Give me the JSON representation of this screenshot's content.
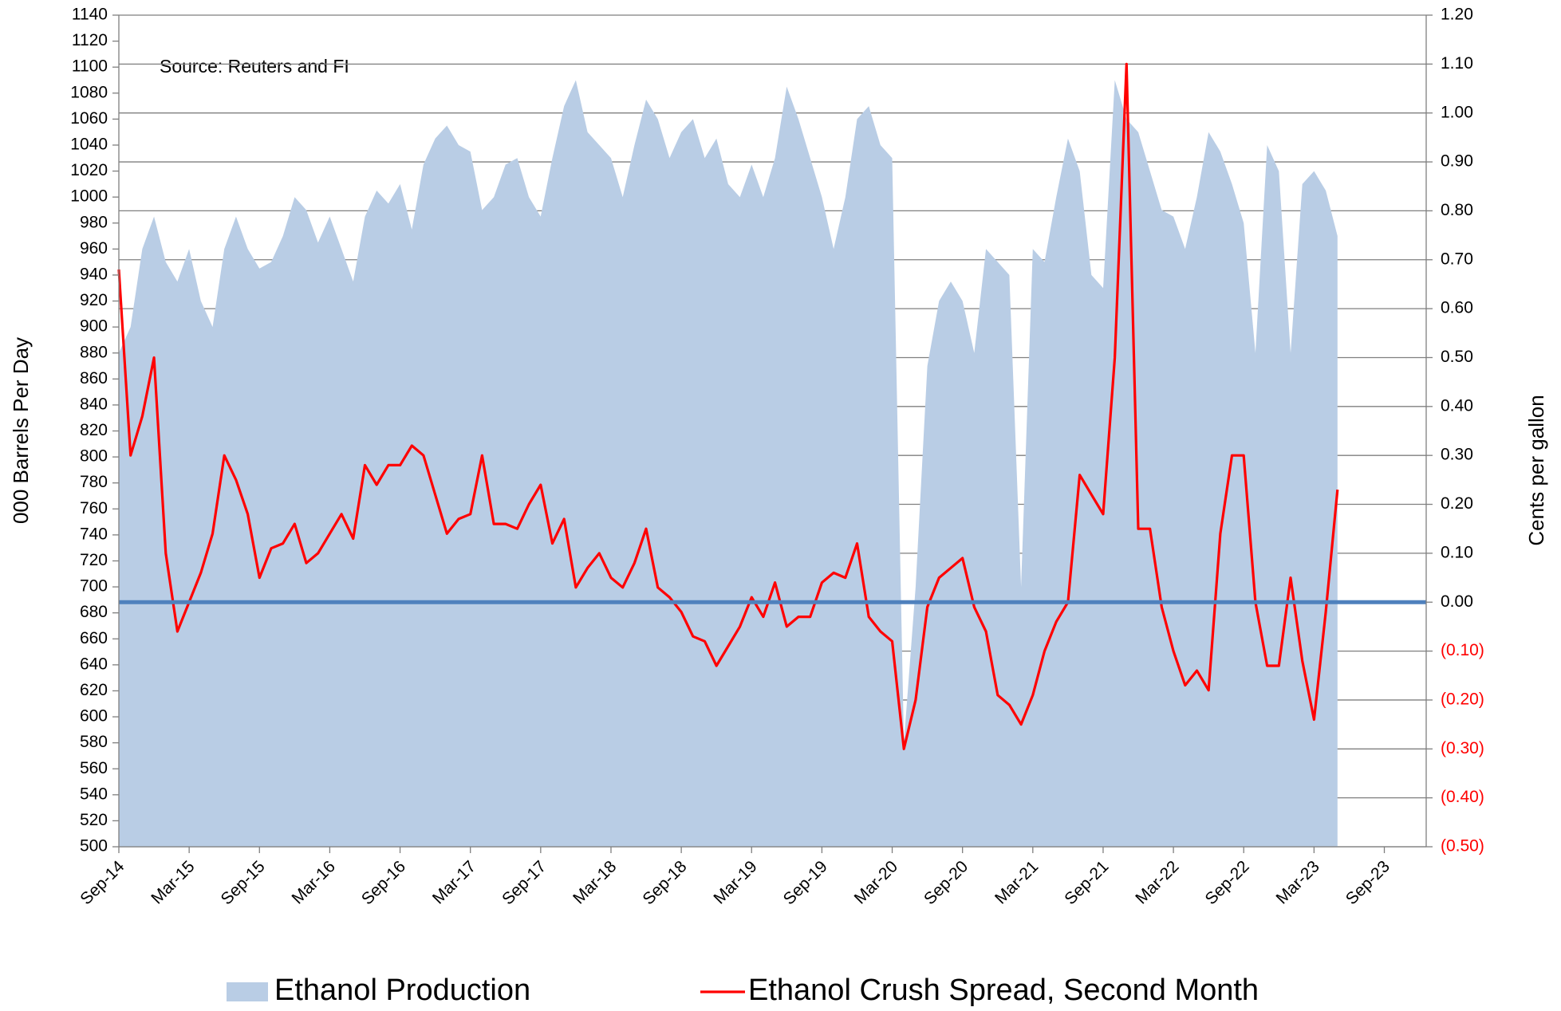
{
  "chart_data": {
    "type": "area-line",
    "annotation": "Source: Reuters and FI",
    "ylabel": "000 Barrels Per Day",
    "y2label": "Cents per gallon",
    "categories": [
      "Sep-14",
      null,
      null,
      null,
      null,
      null,
      "Mar-15",
      null,
      null,
      null,
      null,
      null,
      "Sep-15",
      null,
      null,
      null,
      null,
      null,
      "Mar-16",
      null,
      null,
      null,
      null,
      null,
      "Sep-16",
      null,
      null,
      null,
      null,
      null,
      "Mar-17",
      null,
      null,
      null,
      null,
      null,
      "Sep-17",
      null,
      null,
      null,
      null,
      null,
      "Mar-18",
      null,
      null,
      null,
      null,
      null,
      "Sep-18",
      null,
      null,
      null,
      null,
      null,
      "Mar-19",
      null,
      null,
      null,
      null,
      null,
      "Sep-19",
      null,
      null,
      null,
      null,
      null,
      "Mar-20",
      null,
      null,
      null,
      null,
      null,
      "Sep-20",
      null,
      null,
      null,
      null,
      null,
      "Mar-21",
      null,
      null,
      null,
      null,
      null,
      "Sep-21",
      null,
      null,
      null,
      null,
      null,
      "Mar-22",
      null,
      null,
      null,
      null,
      null,
      "Sep-22",
      null,
      null,
      null,
      null,
      null,
      "Mar-23",
      null,
      null,
      null,
      null,
      null,
      "Sep-23"
    ],
    "series": [
      {
        "name": "Ethanol Production",
        "kind": "area",
        "axis": "y",
        "color": "#b9cde5",
        "values": [
          880,
          900,
          960,
          985,
          950,
          935,
          960,
          920,
          900,
          960,
          985,
          960,
          945,
          950,
          970,
          1000,
          990,
          965,
          985,
          960,
          935,
          985,
          1005,
          995,
          1010,
          975,
          1025,
          1045,
          1055,
          1040,
          1035,
          990,
          1000,
          1025,
          1030,
          1000,
          985,
          1030,
          1070,
          1090,
          1050,
          1040,
          1030,
          1000,
          1040,
          1075,
          1060,
          1030,
          1050,
          1060,
          1030,
          1045,
          1010,
          1000,
          1025,
          1000,
          1030,
          1085,
          1060,
          1030,
          1000,
          960,
          1000,
          1060,
          1070,
          1040,
          1030,
          580,
          700,
          870,
          920,
          935,
          920,
          880,
          960,
          950,
          940,
          700,
          960,
          950,
          1000,
          1045,
          1020,
          940,
          930,
          1090,
          1060,
          1050,
          1020,
          990,
          985,
          960,
          1000,
          1050,
          1035,
          1010,
          980,
          880,
          1040,
          1020,
          880,
          1010,
          1020,
          1005,
          970,
          null,
          null,
          null,
          null
        ]
      },
      {
        "name": "Ethanol Crush Spread, Second Month",
        "kind": "line",
        "axis": "y2",
        "color": "#ff0000",
        "values": [
          0.68,
          0.3,
          0.38,
          0.5,
          0.1,
          -0.06,
          0.0,
          0.06,
          0.14,
          0.3,
          0.25,
          0.18,
          0.05,
          0.11,
          0.12,
          0.16,
          0.08,
          0.1,
          0.14,
          0.18,
          0.13,
          0.28,
          0.24,
          0.28,
          0.28,
          0.32,
          0.3,
          0.22,
          0.14,
          0.17,
          0.18,
          0.3,
          0.16,
          0.16,
          0.15,
          0.2,
          0.24,
          0.12,
          0.17,
          0.03,
          0.07,
          0.1,
          0.05,
          0.03,
          0.08,
          0.15,
          0.03,
          0.01,
          -0.02,
          -0.07,
          -0.08,
          -0.13,
          -0.09,
          -0.05,
          0.01,
          -0.03,
          0.04,
          -0.05,
          -0.03,
          -0.03,
          0.04,
          0.06,
          0.05,
          0.12,
          -0.03,
          -0.06,
          -0.08,
          -0.3,
          -0.2,
          -0.01,
          0.05,
          0.07,
          0.09,
          -0.01,
          -0.06,
          -0.19,
          -0.21,
          -0.25,
          -0.19,
          -0.1,
          -0.04,
          0.0,
          0.26,
          0.22,
          0.18,
          0.5,
          1.1,
          0.15,
          0.15,
          -0.01,
          -0.1,
          -0.17,
          -0.14,
          -0.18,
          0.14,
          0.3,
          0.3,
          0.0,
          -0.13,
          -0.13,
          0.05,
          -0.12,
          -0.24,
          -0.02,
          0.23,
          null,
          null,
          null,
          null
        ]
      }
    ],
    "ylim": [
      500,
      1140
    ],
    "yticks": [
      500,
      520,
      540,
      560,
      580,
      600,
      620,
      640,
      660,
      680,
      700,
      720,
      740,
      760,
      780,
      800,
      820,
      840,
      860,
      880,
      900,
      920,
      940,
      960,
      980,
      1000,
      1020,
      1040,
      1060,
      1080,
      1100,
      1120,
      1140
    ],
    "y2lim": [
      -0.5,
      1.2
    ],
    "y2ticks": [
      {
        "value": -0.5,
        "label": "(0.50)"
      },
      {
        "value": -0.4,
        "label": "(0.40)"
      },
      {
        "value": -0.3,
        "label": "(0.30)"
      },
      {
        "value": -0.2,
        "label": "(0.20)"
      },
      {
        "value": -0.1,
        "label": "(0.10)"
      },
      {
        "value": 0,
        "label": "0.00"
      },
      {
        "value": 0.1,
        "label": "0.10"
      },
      {
        "value": 0.2,
        "label": "0.20"
      },
      {
        "value": 0.3,
        "label": "0.30"
      },
      {
        "value": 0.4,
        "label": "0.40"
      },
      {
        "value": 0.5,
        "label": "0.50"
      },
      {
        "value": 0.6,
        "label": "0.60"
      },
      {
        "value": 0.7,
        "label": "0.70"
      },
      {
        "value": 0.8,
        "label": "0.80"
      },
      {
        "value": 0.9,
        "label": "0.90"
      },
      {
        "value": 1.0,
        "label": "1.00"
      },
      {
        "value": 1.1,
        "label": "1.10"
      },
      {
        "value": 1.2,
        "label": "1.20"
      }
    ],
    "grid": true,
    "grid_axis": "y2",
    "zero_line_color": "#4f81bd",
    "y2_negative_tick_color": "#ff0000",
    "legend": "bottom"
  }
}
